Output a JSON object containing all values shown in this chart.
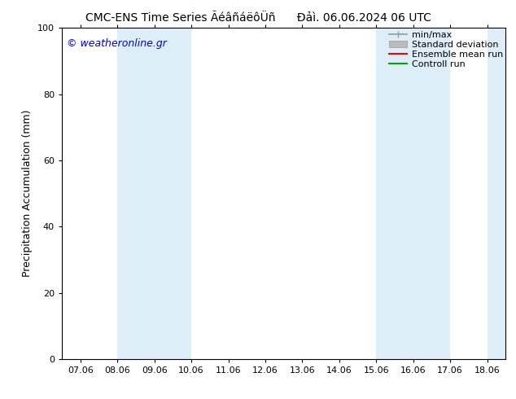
{
  "title_left": "CMC-ENS Time Series ÃéâñáëôÜñ",
  "title_right": "Đảì. 06.06.2024 06 UTC",
  "ylabel": "Precipitation Accumulation (mm)",
  "ylim": [
    0,
    100
  ],
  "yticks": [
    0,
    20,
    40,
    60,
    80,
    100
  ],
  "xtick_labels": [
    "07.06",
    "08.06",
    "09.06",
    "10.06",
    "11.06",
    "12.06",
    "13.06",
    "14.06",
    "15.06",
    "16.06",
    "17.06",
    "18.06"
  ],
  "xtick_positions": [
    0,
    1,
    2,
    3,
    4,
    5,
    6,
    7,
    8,
    9,
    10,
    11
  ],
  "xlim": [
    -0.5,
    11.5
  ],
  "shaded_regions": [
    {
      "x_start": 1.0,
      "x_end": 2.0,
      "color": "#ddeef8"
    },
    {
      "x_start": 2.0,
      "x_end": 3.0,
      "color": "#ddeef8"
    },
    {
      "x_start": 8.0,
      "x_end": 9.0,
      "color": "#ddeef8"
    },
    {
      "x_start": 9.0,
      "x_end": 10.0,
      "color": "#ddeef8"
    },
    {
      "x_start": 11.0,
      "x_end": 11.5,
      "color": "#ddeef8"
    }
  ],
  "watermark": "© weatheronline.gr",
  "watermark_color": "#0000cc",
  "background_color": "#ffffff",
  "plot_bg_color": "#ffffff",
  "legend_labels": [
    "min/max",
    "Standard deviation",
    "Ensemble mean run",
    "Controll run"
  ],
  "legend_line_colors": [
    "#999999",
    "#bbbbbb",
    "#ff0000",
    "#00aa00"
  ],
  "border_color": "#000000",
  "font_size_title": 10,
  "font_size_axis_label": 9,
  "font_size_tick": 8,
  "font_size_watermark": 9,
  "font_size_legend": 8
}
